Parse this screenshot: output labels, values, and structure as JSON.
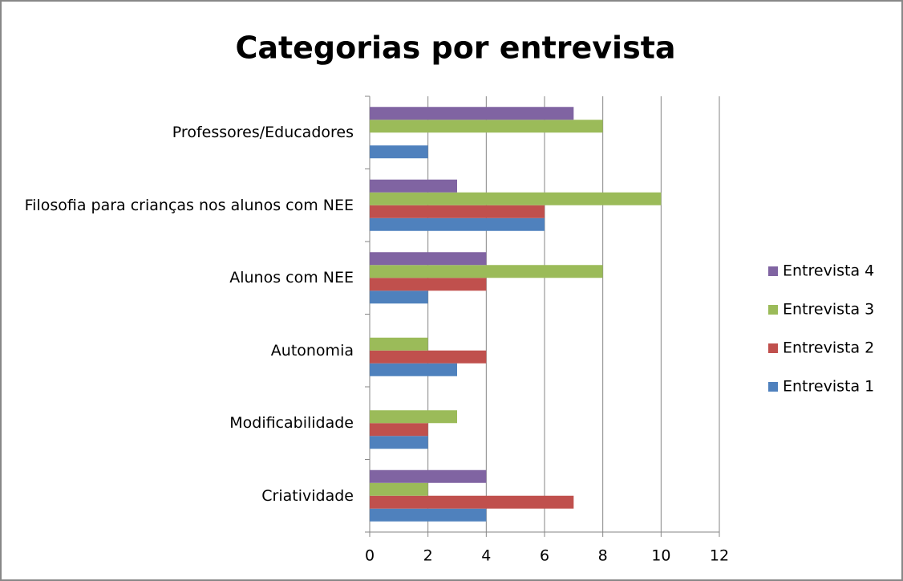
{
  "chart_data": {
    "type": "barh",
    "title": "Categorias por entrevista",
    "categories": [
      "Criatividade",
      "Modificabilidade",
      "Autonomia",
      "Alunos com NEE",
      "Filosofia para crianças nos alunos com NEE",
      "Professores/Educadores"
    ],
    "series": [
      {
        "name": "Entrevista 1",
        "color": "#4f81bd",
        "values": [
          4,
          2,
          3,
          2,
          6,
          2
        ]
      },
      {
        "name": "Entrevista 2",
        "color": "#c0504d",
        "values": [
          7,
          2,
          4,
          4,
          6,
          null
        ]
      },
      {
        "name": "Entrevista 3",
        "color": "#9bbb59",
        "values": [
          2,
          3,
          2,
          8,
          10,
          8
        ]
      },
      {
        "name": "Entrevista 4",
        "color": "#8064a2",
        "values": [
          4,
          null,
          null,
          4,
          3,
          7
        ]
      }
    ],
    "xlim": [
      0,
      12
    ],
    "xticks": [
      0,
      2,
      4,
      6,
      8,
      10,
      12
    ],
    "grid": true,
    "legend": "right"
  }
}
